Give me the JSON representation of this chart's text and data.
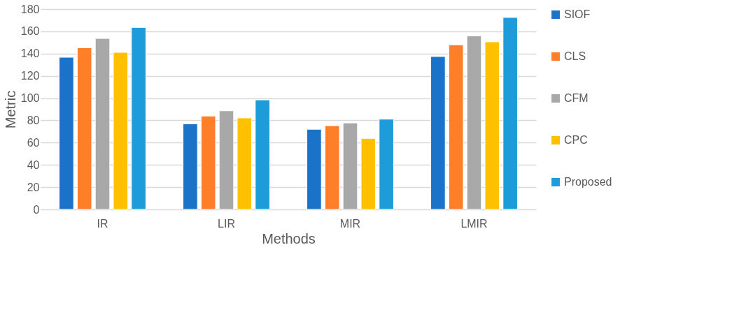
{
  "chart_data": {
    "type": "bar",
    "xlabel": "Methods",
    "ylabel": "Metric",
    "categories": [
      "IR",
      "LIR",
      "MIR",
      "LMIR"
    ],
    "series": [
      {
        "name": "SIOF",
        "color": "#1a73c8",
        "values": [
          136.7,
          76.9,
          72.0,
          137.4
        ]
      },
      {
        "name": "CLS",
        "color": "#fe7f27",
        "values": [
          145.2,
          83.9,
          75.2,
          147.9
        ]
      },
      {
        "name": "CFM",
        "color": "#a8a8a8",
        "values": [
          153.6,
          88.6,
          77.7,
          155.9
        ]
      },
      {
        "name": "CPC",
        "color": "#ffc000",
        "values": [
          141.1,
          82.2,
          63.8,
          150.6
        ]
      },
      {
        "name": "Proposed",
        "color": "#1e9cd9",
        "values": [
          163.5,
          98.4,
          81.1,
          172.5
        ]
      }
    ],
    "ylim": [
      0,
      180
    ],
    "yticks": [
      0,
      20,
      40,
      60,
      80,
      100,
      120,
      140,
      160,
      180
    ],
    "grid": "y",
    "legend": "right"
  }
}
